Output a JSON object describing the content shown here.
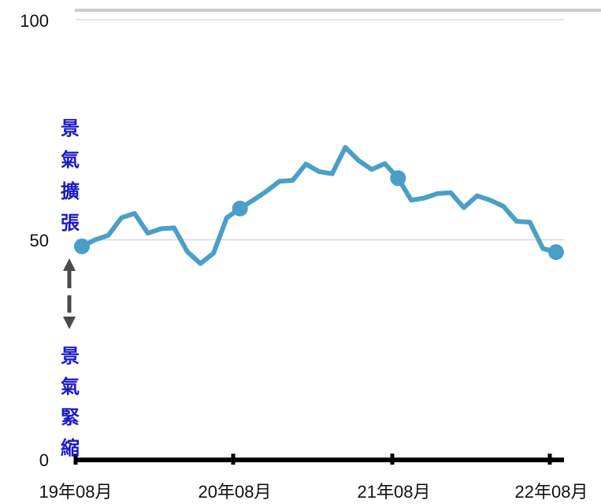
{
  "chart_data": {
    "type": "line",
    "title": "",
    "xlabel": "",
    "ylabel": "",
    "ylim": [
      0,
      100
    ],
    "y_ticks": [
      "0",
      "50",
      "100"
    ],
    "x_ticks": [
      "19年08月",
      "20年08月",
      "21年08月",
      "22年08月"
    ],
    "grid": "horizontal",
    "legend": "none",
    "series": [
      {
        "values": [
          48.5,
          50.0,
          51.0,
          55.0,
          56.0,
          51.5,
          52.5,
          52.7,
          47.3,
          44.6,
          47.0,
          55.0,
          57.1,
          59.0,
          61.0,
          63.3,
          63.5,
          67.2,
          65.5,
          65.0,
          71.0,
          68.0,
          66.0,
          67.3,
          64.0,
          59.0,
          59.5,
          60.5,
          60.7,
          57.3,
          60.0,
          59.0,
          57.6,
          54.2,
          54.0,
          48.0,
          47.2
        ],
        "highlighted_indices": [
          0,
          12,
          24,
          36
        ]
      }
    ],
    "annotations": {
      "expansion_label": "景氣擴張",
      "contraction_label": "景氣緊縮"
    },
    "colors": {
      "line": "#4a9fc8",
      "annotation_text": "#1a1ac8",
      "arrow": "#4a4a4a",
      "gridline": "#d9d9d9",
      "axis": "#000000"
    }
  }
}
